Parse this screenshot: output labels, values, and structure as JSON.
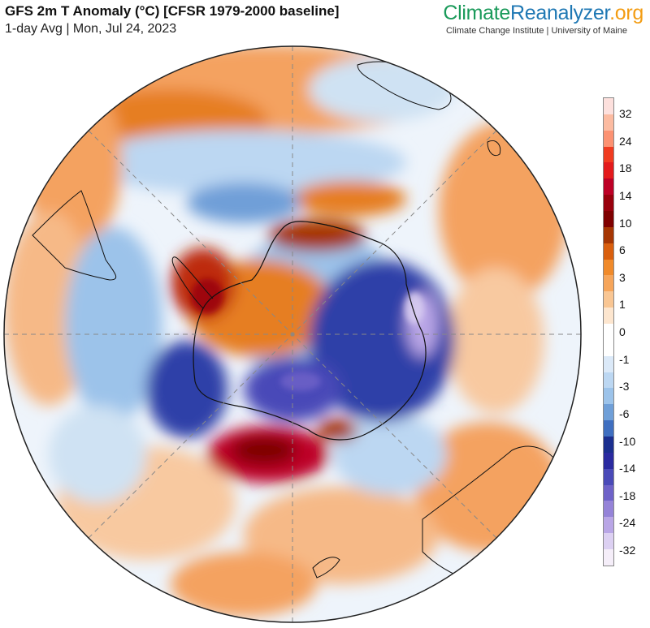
{
  "header": {
    "title": "GFS 2m T Anomaly (°C) [CFSR 1979-2000 baseline]",
    "subtitle": "1-day Avg | Mon, Jul 24, 2023"
  },
  "brand": {
    "part1": "Climate",
    "part2": "Reanalyzer",
    "part3": ".org",
    "tagline": "Climate Change Institute | University of Maine",
    "colors": {
      "climate": "#1a9a5a",
      "reanalyzer": "#1f78b4",
      "org": "#f39c12"
    }
  },
  "map": {
    "projection": "south polar orthographic",
    "region": "Antarctica / Southern Hemisphere",
    "grid": "dashed meridians every 45°"
  },
  "legend": {
    "ticks": [
      "32",
      "24",
      "18",
      "14",
      "10",
      "6",
      "3",
      "1",
      "0",
      "-1",
      "-3",
      "-6",
      "-10",
      "-14",
      "-18",
      "-24",
      "-32"
    ],
    "colors": [
      "#fde0dd",
      "#fcbba1",
      "#fc9272",
      "#f03b20",
      "#e31a1c",
      "#bd0026",
      "#99000d",
      "#7f0000",
      "#a63603",
      "#d95f0e",
      "#f08a2a",
      "#f6a55a",
      "#f9c693",
      "#fde6cf",
      "#ffffff",
      "#ffffff",
      "#dbe9f8",
      "#bcd7f2",
      "#9cc3ea",
      "#6f9fd8",
      "#3f6fc0",
      "#1b2f8f",
      "#2a2aa0",
      "#4a4ab8",
      "#6e62c8",
      "#9583d8",
      "#b9a6e6",
      "#dcd0f2",
      "#f5eef9"
    ]
  }
}
